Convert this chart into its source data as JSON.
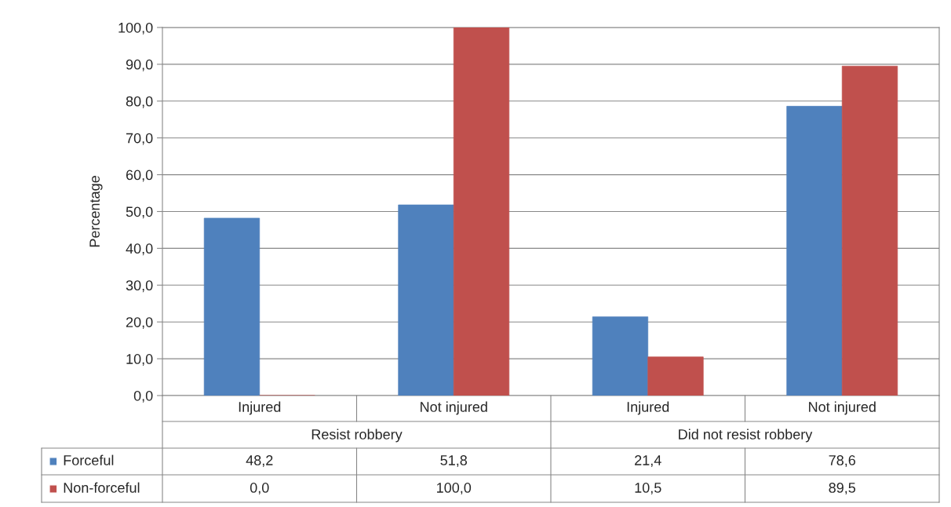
{
  "chart_data": {
    "type": "bar",
    "ylabel": "Percentage",
    "categories": [
      "Injured",
      "Not injured",
      "Injured",
      "Not injured"
    ],
    "annotations": [
      "Resist robbery",
      "Did not resist robbery"
    ],
    "series": [
      {
        "name": "Forceful",
        "color": "#4f81bd",
        "values": [
          48.2,
          51.8,
          21.4,
          78.6
        ],
        "value_labels": [
          "48,2",
          "51,8",
          "21,4",
          "78,6"
        ]
      },
      {
        "name": "Non-forceful",
        "color": "#c0504d",
        "values": [
          0.0,
          100.0,
          10.5,
          89.5
        ],
        "value_labels": [
          "0,0",
          "100,0",
          "10,5",
          "89,5"
        ]
      }
    ],
    "ylim": [
      0,
      100
    ],
    "yticks": [
      {
        "value": 0,
        "label": "0,0"
      },
      {
        "value": 10,
        "label": "10,0"
      },
      {
        "value": 20,
        "label": "20,0"
      },
      {
        "value": 30,
        "label": "30,0"
      },
      {
        "value": 40,
        "label": "40,0"
      },
      {
        "value": 50,
        "label": "50,0"
      },
      {
        "value": 60,
        "label": "60,0"
      },
      {
        "value": 70,
        "label": "70,0"
      },
      {
        "value": 80,
        "label": "80,0"
      },
      {
        "value": 90,
        "label": "90,0"
      },
      {
        "value": 100,
        "label": "100,0"
      }
    ],
    "grid": "y",
    "legend": "bottom"
  }
}
